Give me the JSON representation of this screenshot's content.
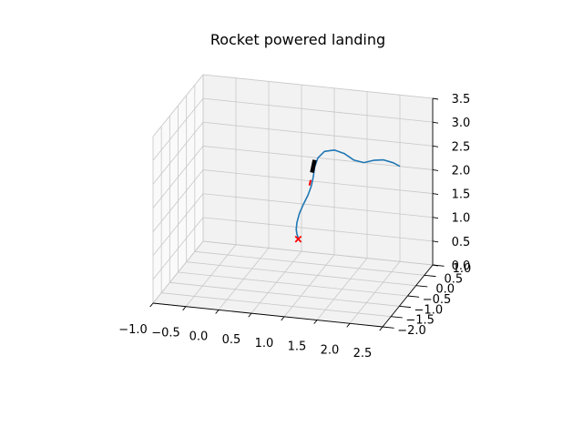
{
  "chart_data": {
    "type": "line3d",
    "title": "Rocket powered landing",
    "xlabel": "",
    "ylabel": "",
    "zlabel": "",
    "xlim": [
      -1.0,
      2.5
    ],
    "ylim": [
      -2.0,
      1.0
    ],
    "zlim": [
      0.0,
      3.5
    ],
    "x_ticks": [
      "−1.0",
      "−0.5",
      "0.0",
      "0.5",
      "1.0",
      "1.5",
      "2.0",
      "2.5"
    ],
    "y_ticks": [
      "−2.0",
      "−1.5",
      "−1.0",
      "−0.5",
      "0.0",
      "0.5",
      "1.0"
    ],
    "z_ticks": [
      "0.0",
      "0.5",
      "1.0",
      "1.5",
      "2.0",
      "2.5",
      "3.0",
      "3.5"
    ],
    "grid": true,
    "series": [
      {
        "kind": "trajectory",
        "color": "#1f77b4",
        "points": [
          [
            2.0,
            1.0,
            2.0
          ],
          [
            1.9,
            1.0,
            2.06
          ],
          [
            1.75,
            1.0,
            2.1
          ],
          [
            1.6,
            1.0,
            2.07
          ],
          [
            1.45,
            1.0,
            2.0
          ],
          [
            1.3,
            1.0,
            2.03
          ],
          [
            1.15,
            1.0,
            2.15
          ],
          [
            1.0,
            1.0,
            2.2
          ],
          [
            0.85,
            1.0,
            2.15
          ],
          [
            0.75,
            1.0,
            2.0
          ],
          [
            0.7,
            1.0,
            1.8
          ],
          [
            0.68,
            1.0,
            1.6
          ],
          [
            0.65,
            1.0,
            1.4
          ],
          [
            0.6,
            1.0,
            1.2
          ],
          [
            0.53,
            1.0,
            1.0
          ],
          [
            0.47,
            1.0,
            0.8
          ],
          [
            0.43,
            1.0,
            0.6
          ],
          [
            0.42,
            1.0,
            0.45
          ],
          [
            0.43,
            1.0,
            0.35
          ],
          [
            0.45,
            1.0,
            0.28
          ]
        ]
      },
      {
        "kind": "rocket-body",
        "color": "#000000",
        "points": [
          [
            0.7,
            1.0,
            1.95
          ],
          [
            0.66,
            1.0,
            1.68
          ]
        ]
      },
      {
        "kind": "thrust-vector",
        "color": "#ff0000",
        "points": [
          [
            0.64,
            1.0,
            1.52
          ],
          [
            0.62,
            1.0,
            1.4
          ]
        ]
      }
    ],
    "markers": [
      {
        "kind": "landing-target",
        "symbol": "x",
        "color": "#ff0000",
        "point": [
          0.45,
          1.0,
          0.25
        ]
      }
    ]
  }
}
